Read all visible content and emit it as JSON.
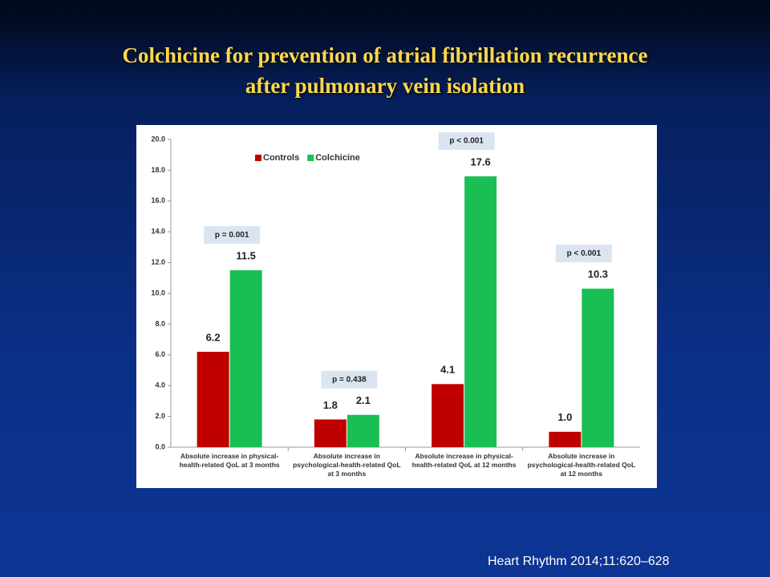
{
  "chart_data": {
    "type": "bar",
    "title": [
      "Colchicine for prevention of atrial fibrillation recurrence",
      "after pulmonary vein isolation"
    ],
    "categories": [
      "Absolute increase in physical-health-related QoL at 3 months",
      "Absolute increase in psychological-health-related QoL at 3 months",
      "Absolute increase in physical-health-related QoL at 12 months",
      "Absolute increase in psychological-health-related QoL at 12 months"
    ],
    "series": [
      {
        "name": "Controls",
        "color": "#c00000",
        "values": [
          6.2,
          1.8,
          4.1,
          1.0
        ],
        "value_labels": [
          "6.2",
          "1.8",
          "4.1",
          "1.0"
        ]
      },
      {
        "name": "Colchicine",
        "color": "#19bf52",
        "values": [
          11.5,
          2.1,
          17.6,
          10.3
        ],
        "value_labels": [
          "11.5",
          "2.1",
          "17.6",
          "10.3"
        ]
      }
    ],
    "annotations": [
      "p = 0.001",
      "p = 0.438",
      "p < 0.001",
      "p < 0.001"
    ],
    "ylim": [
      0,
      20
    ],
    "yticks": [
      {
        "value": 0,
        "label": "0.0"
      },
      {
        "value": 2,
        "label": "2.0"
      },
      {
        "value": 4,
        "label": "4.0"
      },
      {
        "value": 6,
        "label": "6.0"
      },
      {
        "value": 8,
        "label": "8.0"
      },
      {
        "value": 10,
        "label": "10.0"
      },
      {
        "value": 12,
        "label": "12.0"
      },
      {
        "value": 14,
        "label": "14.0"
      },
      {
        "value": 16,
        "label": "16.0"
      },
      {
        "value": 18,
        "label": "18.0"
      },
      {
        "value": 20,
        "label": "20.0"
      }
    ],
    "grid": false,
    "legend": "upper left"
  },
  "source": "Heart Rhythm 2014;11:620–628"
}
